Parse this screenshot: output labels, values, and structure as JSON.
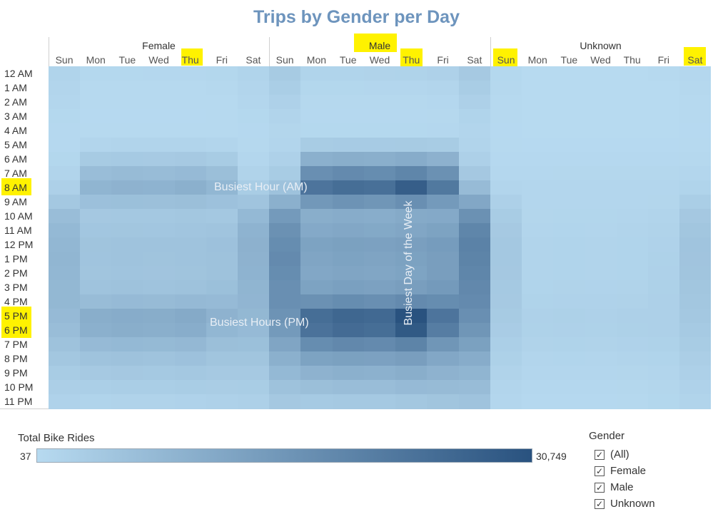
{
  "chart_data": {
    "type": "heatmap",
    "title": "Trips by Gender per Day",
    "groups": [
      "Female",
      "Male",
      "Unknown"
    ],
    "days": [
      "Sun",
      "Mon",
      "Tue",
      "Wed",
      "Thu",
      "Fri",
      "Sat"
    ],
    "hours": [
      "12 AM",
      "1 AM",
      "2 AM",
      "3 AM",
      "4 AM",
      "5 AM",
      "6 AM",
      "7 AM",
      "8 AM",
      "9 AM",
      "10 AM",
      "11 AM",
      "12 PM",
      "1 PM",
      "2 PM",
      "3 PM",
      "4 PM",
      "5 PM",
      "6 PM",
      "7 PM",
      "8 PM",
      "9 PM",
      "10 PM",
      "11 PM"
    ],
    "series": [
      {
        "name": "Female",
        "values": [
          [
            1500,
            600,
            600,
            650,
            700,
            800,
            1500
          ],
          [
            1200,
            300,
            300,
            350,
            350,
            450,
            1200
          ],
          [
            900,
            200,
            200,
            200,
            250,
            300,
            900
          ],
          [
            600,
            150,
            150,
            150,
            150,
            200,
            600
          ],
          [
            400,
            200,
            200,
            200,
            200,
            250,
            400
          ],
          [
            400,
            1200,
            1300,
            1300,
            1300,
            1200,
            500
          ],
          [
            800,
            3500,
            3700,
            3600,
            3800,
            3300,
            900
          ],
          [
            1300,
            6500,
            7000,
            6800,
            7200,
            6200,
            1600
          ],
          [
            2300,
            8500,
            9000,
            8800,
            9500,
            8000,
            3000
          ],
          [
            4200,
            5800,
            6000,
            5900,
            6200,
            5600,
            5000
          ],
          [
            6500,
            4000,
            4200,
            4100,
            4300,
            4200,
            7500
          ],
          [
            7500,
            4500,
            4600,
            4500,
            4700,
            5000,
            8800
          ],
          [
            8000,
            5100,
            5300,
            5200,
            5300,
            5600,
            9200
          ],
          [
            8200,
            5000,
            5200,
            5100,
            5200,
            5500,
            9000
          ],
          [
            8000,
            4800,
            5000,
            4900,
            5100,
            5500,
            8800
          ],
          [
            7800,
            5200,
            5500,
            5300,
            5500,
            6000,
            8500
          ],
          [
            7800,
            6800,
            7200,
            7000,
            7400,
            7200,
            8300
          ],
          [
            7200,
            10000,
            10500,
            10300,
            10800,
            9000,
            7800
          ],
          [
            6500,
            9500,
            10000,
            9700,
            10200,
            8000,
            7200
          ],
          [
            5500,
            7200,
            7500,
            7300,
            7700,
            6200,
            6000
          ],
          [
            4300,
            5200,
            5400,
            5300,
            5600,
            4800,
            4800
          ],
          [
            3300,
            3800,
            4000,
            3900,
            4200,
            3800,
            3800
          ],
          [
            2500,
            2600,
            2800,
            2800,
            3000,
            2900,
            3000
          ],
          [
            1800,
            1500,
            1600,
            1600,
            1800,
            2000,
            2300
          ]
        ]
      },
      {
        "name": "Male",
        "values": [
          [
            3500,
            1500,
            1500,
            1600,
            1700,
            2000,
            3800
          ],
          [
            2800,
            800,
            800,
            850,
            900,
            1100,
            3000
          ],
          [
            2000,
            500,
            500,
            500,
            550,
            700,
            2200
          ],
          [
            1400,
            400,
            400,
            400,
            400,
            500,
            1500
          ],
          [
            1000,
            600,
            600,
            600,
            600,
            700,
            1100
          ],
          [
            1100,
            3200,
            3400,
            3400,
            3500,
            3200,
            1300
          ],
          [
            2000,
            9500,
            10000,
            9800,
            10500,
            9200,
            2300
          ],
          [
            3300,
            17000,
            18000,
            17500,
            19000,
            16500,
            4000
          ],
          [
            5500,
            23000,
            24500,
            24000,
            28000,
            22000,
            7000
          ],
          [
            9500,
            15000,
            16000,
            15500,
            17000,
            14500,
            11500
          ],
          [
            14500,
            10000,
            10500,
            10200,
            10800,
            11000,
            16500
          ],
          [
            16500,
            11000,
            11500,
            11200,
            11800,
            12500,
            19000
          ],
          [
            17500,
            12500,
            13000,
            12800,
            13300,
            14000,
            20000
          ],
          [
            18000,
            12000,
            12500,
            12200,
            12700,
            13500,
            19500
          ],
          [
            17500,
            11500,
            12000,
            11800,
            12300,
            13500,
            19000
          ],
          [
            17000,
            12500,
            13200,
            12800,
            13500,
            14500,
            18500
          ],
          [
            17000,
            16500,
            17500,
            17000,
            18000,
            17500,
            18000
          ],
          [
            16000,
            24500,
            26000,
            25500,
            30749,
            23000,
            17000
          ],
          [
            14500,
            23500,
            25000,
            24500,
            29000,
            21000,
            15500
          ],
          [
            12000,
            17500,
            18500,
            18000,
            19500,
            15500,
            13000
          ],
          [
            9500,
            12500,
            13000,
            12800,
            13500,
            11500,
            10500
          ],
          [
            7500,
            9000,
            9500,
            9300,
            10000,
            9000,
            8500
          ],
          [
            5500,
            6200,
            6600,
            6500,
            7200,
            7000,
            6800
          ],
          [
            4000,
            3700,
            3900,
            3900,
            4300,
            4800,
            5300
          ]
        ]
      },
      {
        "name": "Unknown",
        "values": [
          [
            600,
            120,
            110,
            120,
            130,
            200,
            700
          ],
          [
            450,
            80,
            70,
            80,
            80,
            120,
            500
          ],
          [
            300,
            50,
            50,
            50,
            60,
            80,
            350
          ],
          [
            200,
            40,
            37,
            40,
            40,
            60,
            220
          ],
          [
            150,
            40,
            40,
            40,
            40,
            50,
            150
          ],
          [
            200,
            150,
            150,
            150,
            160,
            170,
            250
          ],
          [
            400,
            400,
            420,
            410,
            430,
            420,
            500
          ],
          [
            700,
            700,
            740,
            720,
            760,
            720,
            900
          ],
          [
            1200,
            900,
            950,
            930,
            980,
            920,
            1500
          ],
          [
            2200,
            900,
            950,
            930,
            980,
            1000,
            2800
          ],
          [
            3300,
            1000,
            1050,
            1020,
            1080,
            1300,
            4000
          ],
          [
            3800,
            1200,
            1250,
            1220,
            1280,
            1600,
            4600
          ],
          [
            4100,
            1400,
            1450,
            1420,
            1480,
            1800,
            5000
          ],
          [
            4200,
            1400,
            1450,
            1420,
            1480,
            1900,
            4900
          ],
          [
            4000,
            1400,
            1450,
            1420,
            1480,
            2000,
            4800
          ],
          [
            3900,
            1500,
            1550,
            1520,
            1600,
            2100,
            4600
          ],
          [
            3800,
            1700,
            1800,
            1750,
            1850,
            2200,
            4400
          ],
          [
            3500,
            2000,
            2100,
            2050,
            2200,
            2300,
            4100
          ],
          [
            3100,
            1900,
            2000,
            1950,
            2100,
            2200,
            3700
          ],
          [
            2600,
            1600,
            1700,
            1650,
            1750,
            1900,
            3200
          ],
          [
            2100,
            1200,
            1250,
            1220,
            1300,
            1500,
            2700
          ],
          [
            1600,
            900,
            950,
            930,
            1000,
            1200,
            2200
          ],
          [
            1200,
            650,
            700,
            680,
            750,
            1000,
            1800
          ],
          [
            900,
            400,
            430,
            420,
            480,
            800,
            1400
          ]
        ]
      }
    ],
    "color_scale": {
      "label": "Total Bike Rides",
      "min": 37,
      "max": 30749,
      "min_label": "37",
      "max_label": "30,749",
      "low_color": "#b7daf0",
      "high_color": "#29527f"
    },
    "annotations": {
      "busiest_am": "Busiest Hour (AM)",
      "busiest_pm": "Busiest Hours (PM)",
      "busiest_day": "Busiest Day of the Week"
    }
  },
  "legend": {
    "title": "Total Bike Rides",
    "min_label": "37",
    "max_label": "30,749"
  },
  "filter": {
    "title": "Gender",
    "items": [
      "(All)",
      "Female",
      "Male",
      "Unknown"
    ],
    "check_mark": "✓"
  },
  "highlight_color": "#fff200"
}
